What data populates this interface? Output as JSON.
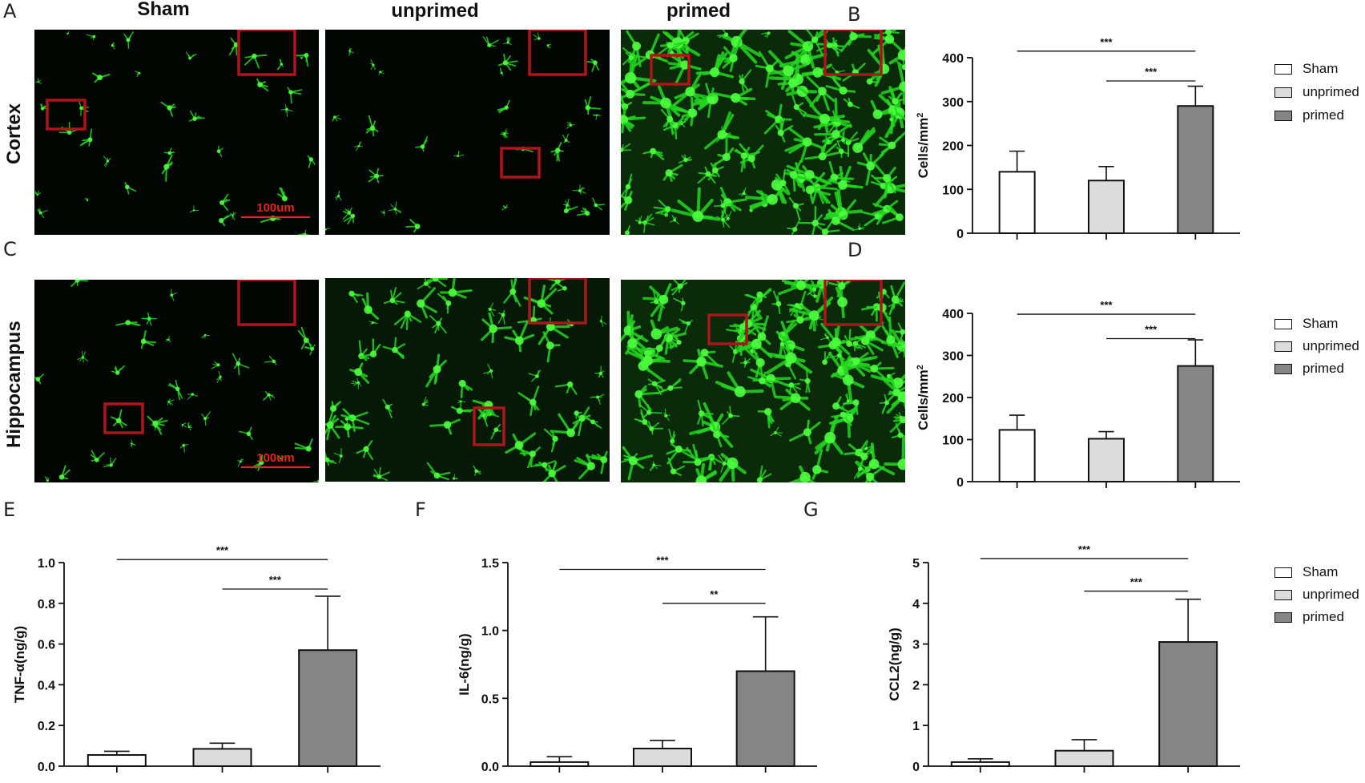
{
  "panel_letters": {
    "A": "A",
    "B": "B",
    "C": "C",
    "D": "D",
    "E": "E",
    "F": "F",
    "G": "G"
  },
  "columns": [
    "Sham",
    "unprimed",
    "primed"
  ],
  "rows": [
    "Cortex",
    "Hippocampus"
  ],
  "scale_bar_label": "100um",
  "colors": {
    "sham": "#ffffff",
    "unprimed": "#dcdcdc",
    "primed": "#858585",
    "cell_green": "#22d71e",
    "roi_box": "#b0141a",
    "scale_bar": "#e8241e"
  },
  "micrograph_density": {
    "cortex": {
      "Sham": "sparse",
      "unprimed": "sparse",
      "primed": "dense"
    },
    "hippocampus": {
      "Sham": "sparse",
      "unprimed": "moderate",
      "primed": "dense"
    }
  },
  "legend": {
    "items": [
      "Sham",
      "unprimed",
      "primed"
    ]
  },
  "chart_data": [
    {
      "panel": "B",
      "type": "bar",
      "categories": [
        "Sham",
        "unprimed",
        "primed"
      ],
      "values": [
        140,
        120,
        290
      ],
      "errors": [
        47,
        32,
        45
      ],
      "ylabel": "Cells/mm",
      "ylabel_sup": "2",
      "ylim": [
        0,
        400
      ],
      "yticks": [
        "0",
        "100",
        "200",
        "300",
        "400"
      ],
      "significance": [
        {
          "from": 0,
          "to": 2,
          "label": "***",
          "at": 415
        },
        {
          "from": 1,
          "to": 2,
          "label": "***",
          "at": 347
        }
      ],
      "legend_position": "right"
    },
    {
      "panel": "D",
      "type": "bar",
      "categories": [
        "Sham",
        "unprimed",
        "primed"
      ],
      "values": [
        123,
        102,
        275
      ],
      "errors": [
        35,
        17,
        62
      ],
      "ylabel": "Cells/mm",
      "ylabel_sup": "2",
      "ylim": [
        0,
        400
      ],
      "yticks": [
        "0",
        "100",
        "200",
        "300",
        "400"
      ],
      "significance": [
        {
          "from": 0,
          "to": 2,
          "label": "***",
          "at": 398
        },
        {
          "from": 1,
          "to": 2,
          "label": "***",
          "at": 340
        }
      ],
      "legend_position": "right"
    },
    {
      "panel": "E",
      "type": "bar",
      "categories": [
        "Sham",
        "unprimed",
        "primed"
      ],
      "values": [
        0.055,
        0.085,
        0.57
      ],
      "errors": [
        0.018,
        0.028,
        0.265
      ],
      "ylabel": "TNF-α(ng/g)",
      "ylim": [
        0,
        1.0
      ],
      "yticks": [
        "0.0",
        "0.2",
        "0.4",
        "0.6",
        "0.8",
        "1.0"
      ],
      "significance": [
        {
          "from": 0,
          "to": 2,
          "label": "***",
          "at": 1.015
        },
        {
          "from": 1,
          "to": 2,
          "label": "***",
          "at": 0.87
        }
      ]
    },
    {
      "panel": "F",
      "type": "bar",
      "categories": [
        "Sham",
        "unprimed",
        "primed"
      ],
      "values": [
        0.03,
        0.13,
        0.7
      ],
      "errors": [
        0.04,
        0.06,
        0.4
      ],
      "ylabel": "IL-6(ng/g)",
      "ylim": [
        0,
        1.5
      ],
      "yticks": [
        "0.0",
        "0.5",
        "1.0",
        "1.5"
      ],
      "significance": [
        {
          "from": 0,
          "to": 2,
          "label": "***",
          "at": 1.45
        },
        {
          "from": 1,
          "to": 2,
          "label": "**",
          "at": 1.2
        }
      ]
    },
    {
      "panel": "G",
      "type": "bar",
      "categories": [
        "Sham",
        "unprimed",
        "primed"
      ],
      "values": [
        0.1,
        0.38,
        3.05
      ],
      "errors": [
        0.08,
        0.27,
        1.05
      ],
      "ylabel": "CCL2(ng/g)",
      "ylim": [
        0,
        5
      ],
      "yticks": [
        "0",
        "1",
        "2",
        "3",
        "4",
        "5"
      ],
      "significance": [
        {
          "from": 0,
          "to": 2,
          "label": "***",
          "at": 5.1
        },
        {
          "from": 1,
          "to": 2,
          "label": "***",
          "at": 4.3
        }
      ],
      "legend_position": "right"
    }
  ]
}
